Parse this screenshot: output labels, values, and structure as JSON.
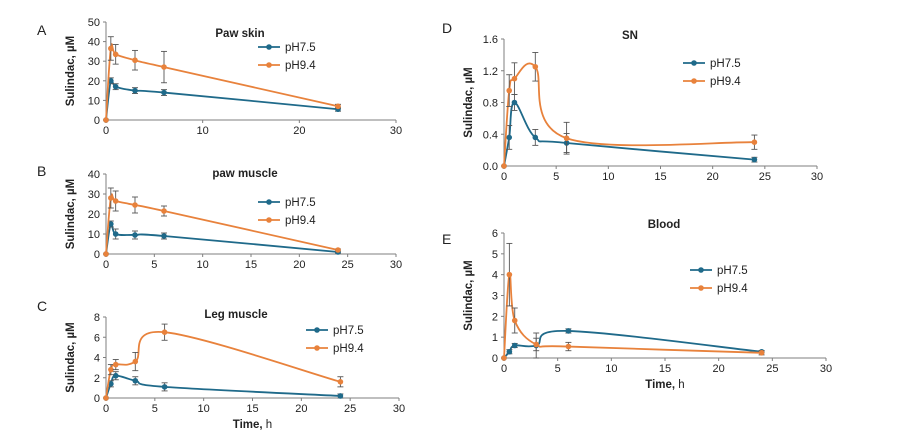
{
  "colors": {
    "pH7.5": "#1f6a8a",
    "pH9.4": "#e8823c",
    "axis": "#7f7f7f",
    "error": "#555555"
  },
  "chart_data": [
    {
      "type": "line",
      "panel": "A",
      "title": "Paw skin",
      "xlabel": "",
      "ylabel": "Sulindac, µM",
      "xlim": [
        0,
        30
      ],
      "ylim": [
        0,
        50
      ],
      "xticks": [
        0,
        10,
        20,
        30
      ],
      "yticks": [
        0,
        10,
        20,
        30,
        40,
        50
      ],
      "legend_position": "top-right",
      "series": [
        {
          "name": "pH7.5",
          "color": "#1f6a8a",
          "x": [
            0,
            0.5,
            1,
            3,
            6,
            24
          ],
          "y": [
            0,
            20,
            17,
            15,
            14,
            5.5
          ],
          "err": [
            0,
            1.5,
            1.5,
            1.5,
            1.5,
            1
          ]
        },
        {
          "name": "pH9.4",
          "color": "#e8823c",
          "x": [
            0,
            0.5,
            1,
            3,
            6,
            24
          ],
          "y": [
            0,
            36.5,
            33.5,
            30.5,
            27,
            7
          ],
          "err": [
            0,
            6,
            5,
            5,
            8,
            1
          ]
        }
      ]
    },
    {
      "type": "line",
      "panel": "B",
      "title": "paw muscle",
      "xlabel": "",
      "ylabel": "Sulindac, µM",
      "xlim": [
        0,
        30
      ],
      "ylim": [
        0,
        40
      ],
      "xticks": [
        0,
        5,
        10,
        15,
        20,
        25,
        30
      ],
      "yticks": [
        0,
        10,
        20,
        30,
        40
      ],
      "legend_position": "right",
      "series": [
        {
          "name": "pH7.5",
          "color": "#1f6a8a",
          "x": [
            0,
            0.5,
            1,
            3,
            6,
            24
          ],
          "y": [
            0,
            15,
            10,
            9.5,
            9,
            1
          ],
          "err": [
            0,
            1.5,
            2.5,
            2,
            1.5,
            0.5
          ]
        },
        {
          "name": "pH9.4",
          "color": "#e8823c",
          "x": [
            0,
            0.5,
            1,
            3,
            6,
            24
          ],
          "y": [
            0,
            28,
            26.5,
            24.5,
            21.5,
            2
          ],
          "err": [
            0,
            5,
            5,
            4,
            2.5,
            0.5
          ]
        }
      ]
    },
    {
      "type": "line",
      "panel": "C",
      "title": "Leg muscle",
      "xlabel": "Time, h",
      "ylabel": "Sulindac, µM",
      "xlim": [
        0,
        30
      ],
      "ylim": [
        0,
        8
      ],
      "xticks": [
        0,
        5,
        10,
        15,
        20,
        25,
        30
      ],
      "yticks": [
        0,
        2,
        4,
        6,
        8
      ],
      "legend_position": "top-right",
      "series": [
        {
          "name": "pH7.5",
          "color": "#1f6a8a",
          "x": [
            0,
            0.5,
            1,
            3,
            6,
            24
          ],
          "y": [
            0,
            1.4,
            2.2,
            1.7,
            1.1,
            0.2
          ],
          "err": [
            0,
            0.3,
            0.4,
            0.4,
            0.4,
            0.2
          ]
        },
        {
          "name": "pH9.4",
          "color": "#e8823c",
          "x": [
            0,
            0.5,
            1,
            3,
            6,
            24
          ],
          "y": [
            0,
            2.8,
            3.3,
            3.6,
            6.5,
            1.6
          ],
          "err": [
            0,
            0.5,
            0.5,
            0.9,
            0.8,
            0.5
          ]
        }
      ]
    },
    {
      "type": "line",
      "panel": "D",
      "title": "SN",
      "xlabel": "",
      "ylabel": "Sulindac, µM",
      "xlim": [
        0,
        30
      ],
      "ylim": [
        0,
        1.6
      ],
      "xticks": [
        0,
        5,
        10,
        15,
        20,
        25,
        30
      ],
      "yticks": [
        0,
        0.4,
        0.8,
        1.2,
        1.6
      ],
      "legend_position": "top-right",
      "series": [
        {
          "name": "pH7.5",
          "color": "#1f6a8a",
          "x": [
            0,
            0.5,
            1,
            3,
            6,
            24
          ],
          "y": [
            0,
            0.36,
            0.8,
            0.36,
            0.29,
            0.08
          ],
          "err": [
            0,
            0.15,
            0.1,
            0.1,
            0.12,
            0.03
          ]
        },
        {
          "name": "pH9.4",
          "color": "#e8823c",
          "x": [
            0,
            0.5,
            1,
            3,
            6,
            24
          ],
          "y": [
            0,
            0.95,
            1.1,
            1.25,
            0.35,
            0.3
          ],
          "err": [
            0,
            0.2,
            0.2,
            0.18,
            0.2,
            0.09
          ]
        }
      ]
    },
    {
      "type": "line",
      "panel": "E",
      "title": "Blood",
      "xlabel": "Time, h",
      "ylabel": "Sulindac, µM",
      "xlim": [
        0,
        30
      ],
      "ylim": [
        0,
        6
      ],
      "xticks": [
        0,
        5,
        10,
        15,
        20,
        25,
        30
      ],
      "yticks": [
        0,
        1,
        2,
        3,
        4,
        5,
        6
      ],
      "legend_position": "top-right",
      "series": [
        {
          "name": "pH7.5",
          "color": "#1f6a8a",
          "x": [
            0,
            0.5,
            1,
            3,
            6,
            24
          ],
          "y": [
            0,
            0.3,
            0.6,
            0.6,
            1.3,
            0.3
          ],
          "err": [
            0,
            0.1,
            0.1,
            0.6,
            0.1,
            0.05
          ]
        },
        {
          "name": "pH9.4",
          "color": "#e8823c",
          "x": [
            0,
            0.5,
            1,
            3,
            6,
            24
          ],
          "y": [
            0,
            4,
            1.8,
            0.65,
            0.55,
            0.25
          ],
          "err": [
            0,
            1.5,
            0.6,
            0.3,
            0.2,
            0.1
          ]
        }
      ]
    }
  ]
}
